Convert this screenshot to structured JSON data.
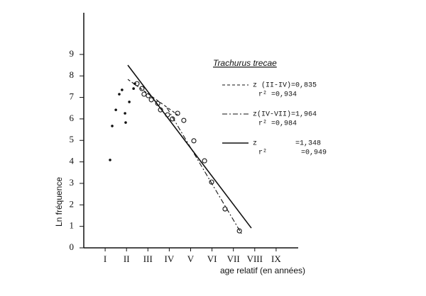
{
  "chart_data": {
    "type": "scatter",
    "title": "Trachurus trecae",
    "x_label": "age relatif (en années)",
    "y_label": "Ln fréquence",
    "xlim": [
      0,
      10
    ],
    "ylim": [
      0,
      11
    ],
    "xticks": [
      {
        "value": 1,
        "label": "I"
      },
      {
        "value": 2,
        "label": "II"
      },
      {
        "value": 3,
        "label": "III"
      },
      {
        "value": 4,
        "label": "IV"
      },
      {
        "value": 5,
        "label": "V"
      },
      {
        "value": 6,
        "label": "VI"
      },
      {
        "value": 7,
        "label": "VII"
      },
      {
        "value": 8,
        "label": "VIII"
      },
      {
        "value": 9,
        "label": "IX"
      }
    ],
    "yticks": [
      0,
      1,
      2,
      3,
      4,
      5,
      6,
      7,
      8,
      9
    ],
    "series": [
      {
        "marker": "dot",
        "color": "#111",
        "x": [
          1.23,
          1.33,
          1.5,
          1.66,
          1.79,
          1.93,
          1.96,
          2.13,
          2.33,
          2.39
        ],
        "values": [
          4.09,
          5.67,
          6.42,
          7.15,
          7.35,
          6.26,
          5.83,
          6.79,
          7.41,
          7.64
        ]
      },
      {
        "marker": "circle",
        "color": "#111",
        "x": [
          2.49,
          2.72,
          2.82,
          3.02,
          3.16,
          3.46,
          3.59,
          3.92,
          4.15,
          4.39,
          4.68,
          5.15,
          5.65,
          5.98,
          6.61,
          7.28
        ],
        "values": [
          7.64,
          7.41,
          7.15,
          7.08,
          6.89,
          6.72,
          6.42,
          6.19,
          6.0,
          6.26,
          5.93,
          4.98,
          4.05,
          3.06,
          1.81,
          0.79
        ]
      }
    ],
    "lines": [
      {
        "style": "dashed",
        "color": "#111",
        "x": [
          2.06,
          4.39
        ],
        "values": [
          7.84,
          6.19
        ],
        "label_z": "z (II-IV)=0,835",
        "label_r2": "r² =0,934"
      },
      {
        "style": "dashdot",
        "color": "#111",
        "x": [
          3.89,
          7.38
        ],
        "values": [
          6.52,
          0.66
        ],
        "label_z": "z(IV-VII)=1,964",
        "label_r2": "r² =0,984"
      },
      {
        "style": "solid",
        "color": "#111",
        "x": [
          2.06,
          7.84
        ],
        "values": [
          8.5,
          0.92
        ],
        "label_z": "z         =1,348",
        "label_r2": "r²        =0,949"
      }
    ]
  }
}
